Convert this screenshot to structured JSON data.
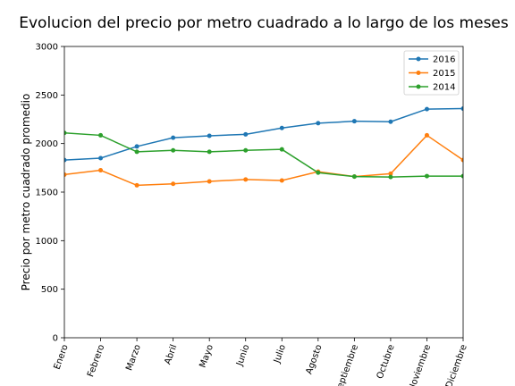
{
  "chart_data": {
    "type": "line",
    "title": "Evolucion del precio por metro cuadrado a lo largo de los meses",
    "xlabel": "",
    "ylabel": "Precio por metro cuadrado promedio",
    "categories": [
      "Enero",
      "Febrero",
      "Marzo",
      "Abril",
      "Mayo",
      "Junio",
      "Julio",
      "Agosto",
      "Septiembre",
      "Octubre",
      "Noviembre",
      "Diciembre"
    ],
    "ylim": [
      0,
      3000
    ],
    "yticks": [
      0,
      500,
      1000,
      1500,
      2000,
      2500,
      3000
    ],
    "grid": false,
    "legend_position": "top-right",
    "series": [
      {
        "name": "2016",
        "color": "#1f77b4",
        "values": [
          1830,
          1850,
          1970,
          2060,
          2080,
          2095,
          2160,
          2210,
          2230,
          2225,
          2355,
          2360
        ]
      },
      {
        "name": "2015",
        "color": "#ff7f0e",
        "values": [
          1680,
          1725,
          1570,
          1585,
          1610,
          1630,
          1620,
          1710,
          1660,
          1690,
          2085,
          1830
        ]
      },
      {
        "name": "2014",
        "color": "#2ca02c",
        "values": [
          2110,
          2085,
          1915,
          1930,
          1915,
          1930,
          1940,
          1700,
          1660,
          1655,
          1665,
          1665
        ]
      }
    ]
  }
}
